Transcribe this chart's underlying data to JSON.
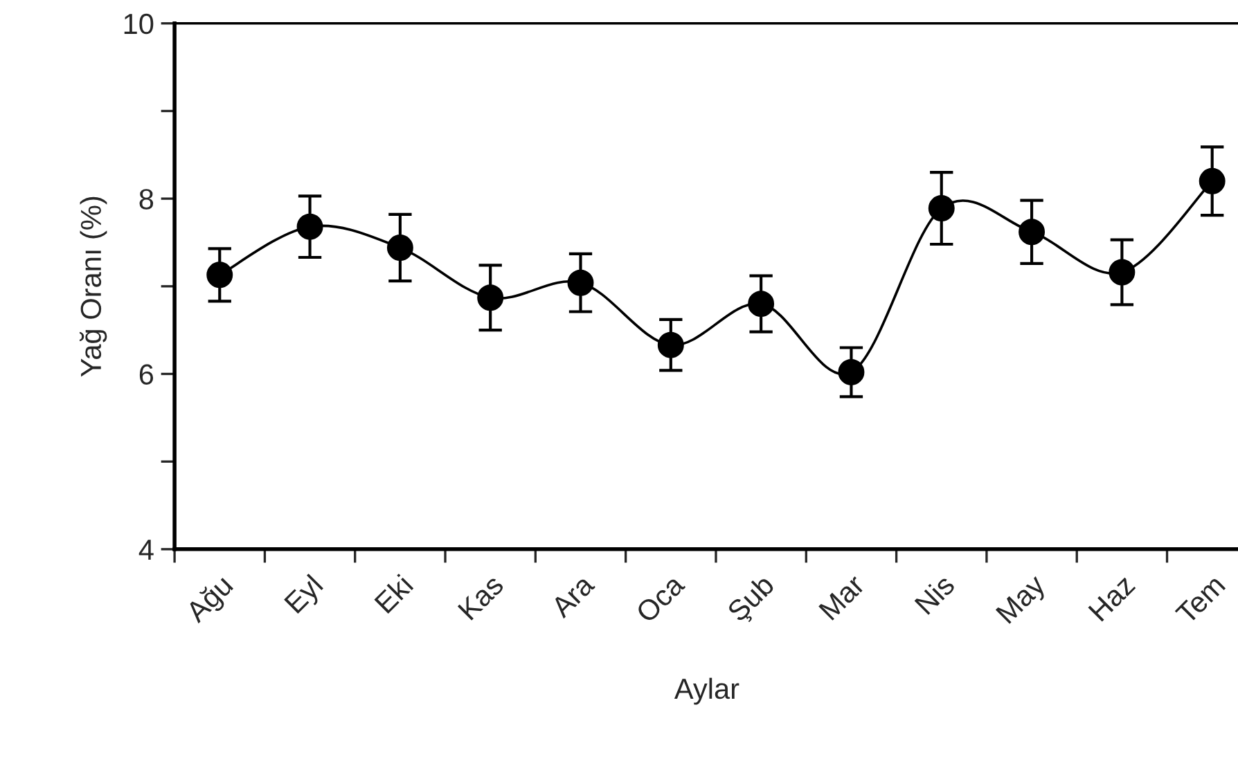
{
  "chart_data": {
    "type": "line",
    "xlabel": "Aylar",
    "ylabel": "Yağ Oranı (%)",
    "categories": [
      "Ağu",
      "Eyl",
      "Eki",
      "Kas",
      "Ara",
      "Oca",
      "Şub",
      "Mar",
      "Nis",
      "May",
      "Haz",
      "Tem"
    ],
    "series": [
      {
        "color": "#000000",
        "values": [
          7.13,
          7.68,
          7.44,
          6.87,
          7.04,
          6.33,
          6.8,
          6.02,
          7.89,
          7.62,
          7.16,
          8.2
        ],
        "errors": [
          0.3,
          0.35,
          0.38,
          0.37,
          0.33,
          0.29,
          0.32,
          0.28,
          0.41,
          0.36,
          0.37,
          0.39
        ]
      }
    ],
    "ylim": [
      4,
      10
    ],
    "yticks": [
      4,
      {
        "value": 5,
        "label": null
      },
      6,
      {
        "value": 7,
        "label": null
      },
      8,
      {
        "value": 9,
        "label": null
      },
      10
    ],
    "marker": "circle",
    "line_style": "solid",
    "grid": false,
    "legend": false
  }
}
